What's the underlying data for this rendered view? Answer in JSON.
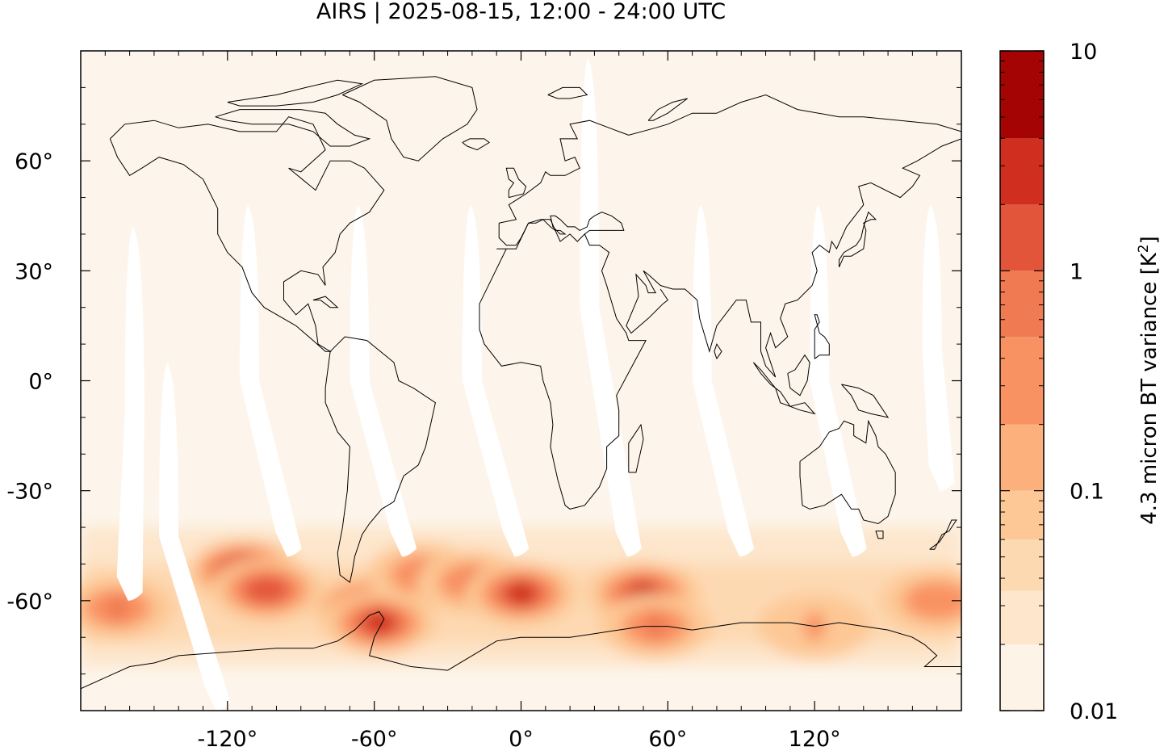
{
  "title": "AIRS | 2025-08-15, 12:00 - 24:00 UTC",
  "map": {
    "projection": "equirectangular",
    "lon_range": [
      -180,
      180
    ],
    "lat_range": [
      -90,
      90
    ],
    "x_ticks": [
      {
        "lon": -120,
        "label": "-120°"
      },
      {
        "lon": -60,
        "label": "-60°"
      },
      {
        "lon": 0,
        "label": "0°"
      },
      {
        "lon": 60,
        "label": "60°"
      },
      {
        "lon": 120,
        "label": "120°"
      }
    ],
    "y_ticks": [
      {
        "lat": 60,
        "label": "60°"
      },
      {
        "lat": 30,
        "label": "30°"
      },
      {
        "lat": 0,
        "label": "0°"
      },
      {
        "lat": -30,
        "label": "-30°"
      },
      {
        "lat": -60,
        "label": "-60°"
      }
    ],
    "background_color": "#fdf5eb",
    "coastline_color": "#000000",
    "data_gaps": [
      {
        "lon_top": -158,
        "lon_bottom": -160,
        "lat_top": 42,
        "lat_bottom": -60
      },
      {
        "lon_top": -111,
        "lon_bottom": -95,
        "lat_top": 48,
        "lat_bottom": -48
      },
      {
        "lon_top": -66,
        "lon_bottom": -48,
        "lat_top": 48,
        "lat_bottom": -48
      },
      {
        "lon_top": -20,
        "lon_bottom": -2,
        "lat_top": 48,
        "lat_bottom": -48
      },
      {
        "lon_top": 28,
        "lon_bottom": 44,
        "lat_top": 88,
        "lat_bottom": -48
      },
      {
        "lon_top": 74,
        "lon_bottom": 90,
        "lat_top": 48,
        "lat_bottom": -48
      },
      {
        "lon_top": 122,
        "lon_bottom": 136,
        "lat_top": 48,
        "lat_bottom": -48
      },
      {
        "lon_top": 168,
        "lon_bottom": 172,
        "lat_top": 48,
        "lat_bottom": -30
      },
      {
        "lon_top": -144,
        "lon_bottom": -124,
        "lat_top": 5,
        "lat_bottom": -90
      }
    ],
    "hotspots": [
      {
        "lon": -113,
        "lat": -52,
        "value": 3.0
      },
      {
        "lon": -104,
        "lat": -57,
        "value": 1.0
      },
      {
        "lon": -62,
        "lat": -62,
        "value": 5.0
      },
      {
        "lon": -58,
        "lat": -66,
        "value": 2.5
      },
      {
        "lon": -40,
        "lat": -53,
        "value": 0.6
      },
      {
        "lon": -20,
        "lat": -55,
        "value": 0.7
      },
      {
        "lon": 0,
        "lat": -58,
        "value": 2.0
      },
      {
        "lon": 50,
        "lat": -58,
        "value": 2.0
      },
      {
        "lon": 55,
        "lat": -67,
        "value": 0.8
      },
      {
        "lon": -165,
        "lat": -62,
        "value": 0.5
      },
      {
        "lon": 120,
        "lat": -67,
        "value": 0.25
      },
      {
        "lon": 170,
        "lat": -60,
        "value": 0.3
      }
    ]
  },
  "colorbar": {
    "label": "4.3 micron BT variance [K",
    "label_sup": "2",
    "label_end": "]",
    "scale": "log",
    "range": [
      0.01,
      10
    ],
    "tick_labels": [
      {
        "value": 10,
        "label": "10"
      },
      {
        "value": 1,
        "label": "1"
      },
      {
        "value": 0.1,
        "label": "0.1"
      },
      {
        "value": 0.01,
        "label": "0.01"
      }
    ],
    "levels": [
      {
        "low": 0.01,
        "high": 0.02,
        "color": "#fdf3e6"
      },
      {
        "low": 0.02,
        "high": 0.035,
        "color": "#fde6cc"
      },
      {
        "low": 0.035,
        "high": 0.06,
        "color": "#fdd9b2"
      },
      {
        "low": 0.06,
        "high": 0.1,
        "color": "#fdc895"
      },
      {
        "low": 0.1,
        "high": 0.2,
        "color": "#fcb07c"
      },
      {
        "low": 0.2,
        "high": 0.5,
        "color": "#f99262"
      },
      {
        "low": 0.5,
        "high": 1,
        "color": "#f07a52"
      },
      {
        "low": 1,
        "high": 2,
        "color": "#e3553b"
      },
      {
        "low": 2,
        "high": 4,
        "color": "#d02e1e"
      },
      {
        "low": 4,
        "high": 10,
        "color": "#a40404"
      }
    ]
  }
}
